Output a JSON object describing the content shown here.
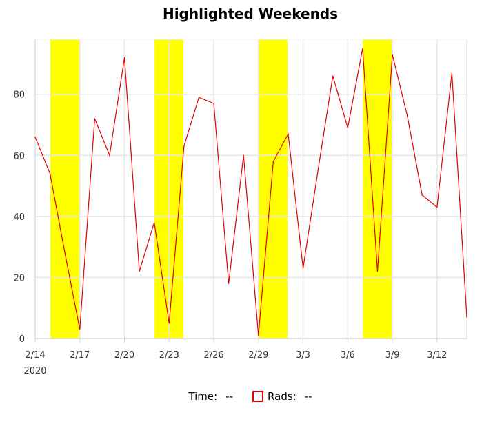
{
  "chart_data": {
    "type": "line",
    "title": "Highlighted Weekends",
    "x_axis": {
      "type": "date",
      "range": [
        "2020-02-14",
        "2020-03-14"
      ],
      "tick_labels": [
        "2/14",
        "2/17",
        "2/20",
        "2/23",
        "2/26",
        "2/29",
        "3/3",
        "3/6",
        "3/9",
        "3/12"
      ],
      "year_label": "2020"
    },
    "y_axis": {
      "range": [
        0,
        98
      ],
      "tick_labels": [
        "0",
        "20",
        "40",
        "60",
        "80"
      ]
    },
    "grid": true,
    "highlighted_ranges": [
      {
        "from": "2020-02-15",
        "to": "2020-02-17"
      },
      {
        "from": "2020-02-22",
        "to": "2020-02-24"
      },
      {
        "from": "2020-02-29",
        "to": "2020-03-02"
      },
      {
        "from": "2020-03-07",
        "to": "2020-03-09"
      }
    ],
    "highlight_color": "#ffff00",
    "series": [
      {
        "color": "#e00000",
        "x": [
          "2020-02-14",
          "2020-02-15",
          "2020-02-16",
          "2020-02-17",
          "2020-02-18",
          "2020-02-19",
          "2020-02-20",
          "2020-02-21",
          "2020-02-22",
          "2020-02-23",
          "2020-02-24",
          "2020-02-25",
          "2020-02-26",
          "2020-02-27",
          "2020-02-28",
          "2020-02-29",
          "2020-03-01",
          "2020-03-02",
          "2020-03-03",
          "2020-03-04",
          "2020-03-05",
          "2020-03-06",
          "2020-03-07",
          "2020-03-08",
          "2020-03-09",
          "2020-03-10",
          "2020-03-11",
          "2020-03-12",
          "2020-03-13",
          "2020-03-14"
        ],
        "values": [
          66,
          54,
          28,
          3,
          72,
          60,
          92,
          22,
          38,
          5,
          63,
          79,
          77,
          18,
          60,
          1,
          58,
          67,
          23,
          55,
          86,
          69,
          95,
          22,
          93,
          73,
          47,
          43,
          87,
          7
        ]
      }
    ]
  },
  "legend": {
    "time_label": "Time:",
    "time_value": "--",
    "rads_label": "Rads:",
    "rads_value": "--"
  }
}
